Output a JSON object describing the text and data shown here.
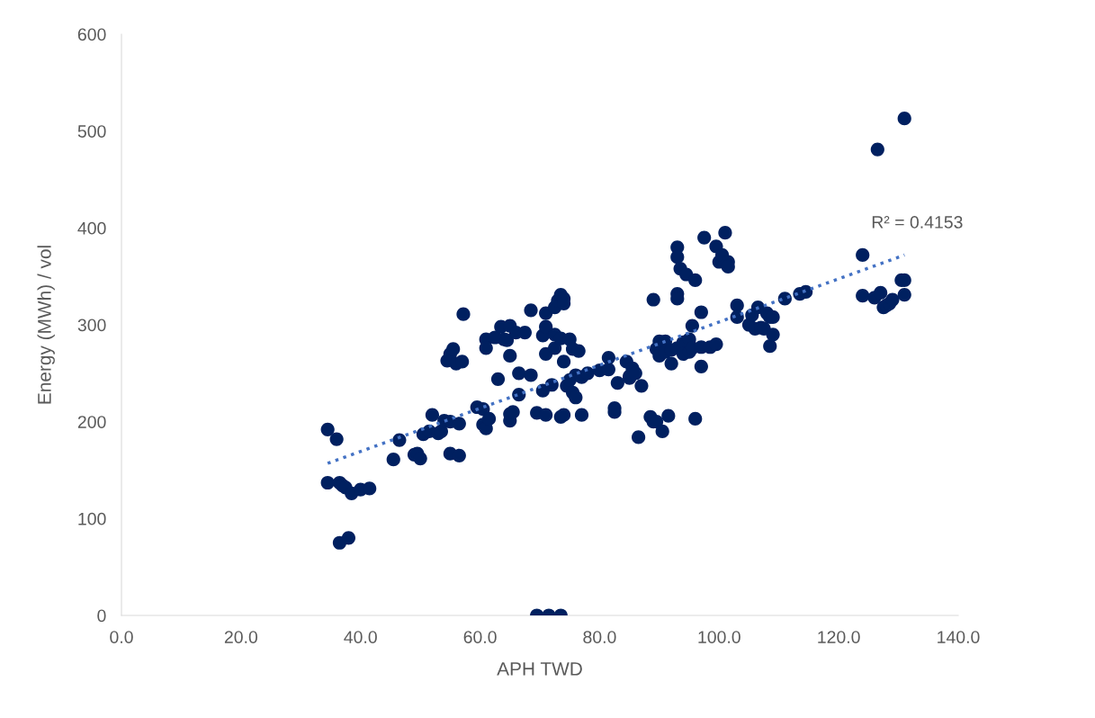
{
  "chart_data": {
    "type": "scatter",
    "xlabel": "APH TWD",
    "ylabel": "Energy (MWh) / vol",
    "marker": "circle",
    "grid": false,
    "xlim": [
      0,
      140
    ],
    "ylim": [
      0,
      600
    ],
    "xticks": [
      {
        "value": 0,
        "label": "0.0"
      },
      {
        "value": 20,
        "label": "20.0"
      },
      {
        "value": 40,
        "label": "40.0"
      },
      {
        "value": 60,
        "label": "60.0"
      },
      {
        "value": 80,
        "label": "80.0"
      },
      {
        "value": 100,
        "label": "100.0"
      },
      {
        "value": 120,
        "label": "120.0"
      },
      {
        "value": 140,
        "label": "140.0"
      }
    ],
    "yticks": [
      0,
      100,
      200,
      300,
      400,
      500,
      600
    ],
    "annotations": [
      "R² = 0.4153"
    ],
    "series": [
      {
        "color": "#002060",
        "x": [
          34.5,
          36,
          34.5,
          36.5,
          37,
          37.5,
          38.5,
          40,
          41.5,
          36.5,
          38,
          45.5,
          46.5,
          49,
          49.5,
          50,
          50.5,
          51.5,
          52,
          53,
          53.5,
          54,
          55,
          55,
          56.5,
          56.5,
          54.5,
          55,
          55.5,
          56,
          57,
          57.2,
          59.5,
          60.5,
          60.5,
          61,
          61,
          61,
          61.5,
          62.5,
          63,
          63.5,
          64,
          64.5,
          65,
          65,
          65,
          65,
          65.5,
          66,
          66.5,
          66.5,
          67.5,
          68.5,
          68.5,
          69.5,
          70.5,
          70.5,
          71,
          71,
          71,
          71,
          72,
          72.5,
          72.5,
          72.5,
          73,
          73.5,
          74,
          74,
          73.5,
          73.5,
          74,
          74,
          74.5,
          75,
          75,
          75.5,
          75.5,
          76,
          76,
          76.5,
          77,
          77,
          78,
          80,
          81.5,
          81.5,
          82.5,
          82.5,
          83,
          84.5,
          85,
          85,
          85.5,
          86,
          86.5,
          87,
          88.5,
          89,
          89,
          89.5,
          89.5,
          90,
          90,
          90.5,
          91,
          91,
          91.5,
          92,
          92,
          93,
          93,
          93,
          93,
          93,
          93.5,
          94,
          94,
          94.5,
          95,
          95,
          95.5,
          95.5,
          96,
          96,
          97,
          97,
          97,
          97.5,
          98.5,
          99.5,
          99.5,
          100,
          100.5,
          101,
          101.5,
          101.5,
          103,
          103,
          105,
          105.5,
          106,
          106.5,
          107,
          107.5,
          108,
          108.5,
          108.5,
          109,
          109,
          111,
          113.5,
          114.5,
          124,
          124,
          126,
          127,
          127.5,
          128,
          128.5,
          129,
          130.5,
          131,
          131,
          126.5,
          131,
          69.5,
          71.5,
          73.5
        ],
        "values": [
          192,
          182,
          137,
          137,
          134,
          132,
          126,
          130,
          131,
          75,
          80,
          161,
          181,
          166,
          167,
          162,
          187,
          190,
          207,
          188,
          190,
          201,
          200,
          167,
          165,
          198,
          263,
          270,
          275,
          260,
          262,
          311,
          215,
          213,
          197,
          193,
          285,
          276,
          203,
          287,
          244,
          298,
          285,
          284,
          299,
          268,
          208,
          201,
          210,
          292,
          250,
          228,
          292,
          315,
          248,
          209,
          289,
          232,
          298,
          312,
          270,
          207,
          238,
          276,
          290,
          318,
          325,
          331,
          327,
          322,
          286,
          205,
          262,
          207,
          237,
          243,
          285,
          275,
          230,
          225,
          248,
          273,
          207,
          246,
          250,
          253,
          266,
          254,
          210,
          214,
          240,
          262,
          245,
          247,
          255,
          250,
          184,
          237,
          205,
          200,
          326,
          200,
          275,
          283,
          268,
          190,
          283,
          272,
          206,
          260,
          274,
          380,
          370,
          332,
          327,
          276,
          358,
          282,
          270,
          352,
          285,
          272,
          299,
          276,
          346,
          203,
          313,
          257,
          277,
          390,
          277,
          280,
          381,
          365,
          372,
          395,
          365,
          360,
          320,
          308,
          300,
          310,
          296,
          318,
          297,
          296,
          312,
          308,
          278,
          308,
          290,
          327,
          332,
          334,
          372,
          330,
          328,
          333,
          318,
          320,
          322,
          326,
          346,
          346,
          331,
          481,
          513,
          0,
          0,
          0
        ]
      },
      {
        "type": "line",
        "color": "#4472c4",
        "line_style": "dotted",
        "marker": "none",
        "x": [
          34.5,
          131
        ],
        "values": [
          157,
          372
        ]
      }
    ]
  }
}
